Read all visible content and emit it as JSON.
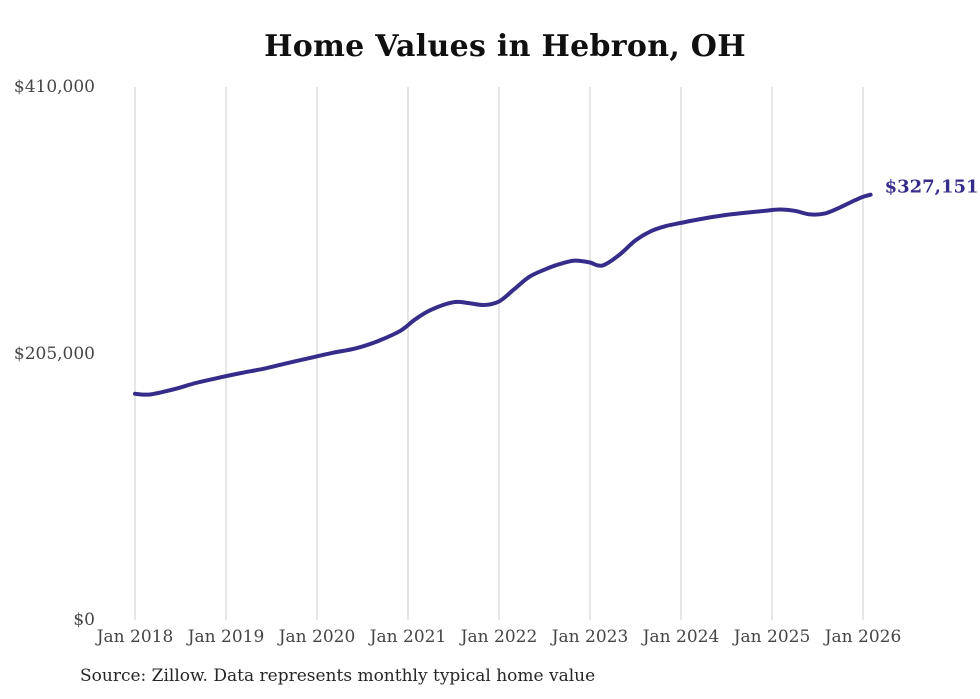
{
  "chart": {
    "title": "Home Values in Hebron, OH",
    "end_value_label": "$327,151",
    "source_note": "Source: Zillow. Data represents monthly typical home value"
  },
  "chart_data": {
    "type": "line",
    "title": "Home Values in Hebron, OH",
    "xlabel": "",
    "ylabel": "",
    "ylim": [
      0,
      410000
    ],
    "grid": "vertical-only",
    "legend": "none",
    "line_color": "#362d8b",
    "gridline_color": "#cccccc",
    "axis_text_color": "#454545",
    "y_ticks": [
      {
        "value": 0,
        "label": "$0"
      },
      {
        "value": 205000,
        "label": "$205,000"
      },
      {
        "value": 410000,
        "label": "$410,000"
      }
    ],
    "x_ticks": [
      "Jan 2018",
      "Jan 2019",
      "Jan 2020",
      "Jan 2021",
      "Jan 2022",
      "Jan 2023",
      "Jan 2024",
      "Jan 2025",
      "Jan 2026"
    ],
    "series": [
      {
        "name": "Monthly typical home value",
        "end_label": "$327,151",
        "latest_value": 327151,
        "points": [
          [
            "2018-01",
            174000
          ],
          [
            "2018-03",
            173500
          ],
          [
            "2018-06",
            177300
          ],
          [
            "2018-09",
            182300
          ],
          [
            "2018-12",
            186300
          ],
          [
            "2019-03",
            190000
          ],
          [
            "2019-06",
            193300
          ],
          [
            "2019-09",
            197500
          ],
          [
            "2019-12",
            201500
          ],
          [
            "2020-03",
            205500
          ],
          [
            "2020-06",
            208800
          ],
          [
            "2020-09",
            214500
          ],
          [
            "2020-12",
            222500
          ],
          [
            "2021-02",
            231500
          ],
          [
            "2021-04",
            238500
          ],
          [
            "2021-07",
            244500
          ],
          [
            "2021-09",
            243800
          ],
          [
            "2021-11",
            242300
          ],
          [
            "2022-01",
            245000
          ],
          [
            "2022-03",
            254500
          ],
          [
            "2022-05",
            264000
          ],
          [
            "2022-07",
            269500
          ],
          [
            "2022-09",
            273800
          ],
          [
            "2022-11",
            276500
          ],
          [
            "2023-01",
            275000
          ],
          [
            "2023-02",
            272800
          ],
          [
            "2023-03",
            273500
          ],
          [
            "2023-05",
            281500
          ],
          [
            "2023-07",
            292000
          ],
          [
            "2023-09",
            299000
          ],
          [
            "2023-11",
            303000
          ],
          [
            "2024-01",
            305500
          ],
          [
            "2024-03",
            307800
          ],
          [
            "2024-06",
            310800
          ],
          [
            "2024-09",
            313000
          ],
          [
            "2024-12",
            314700
          ],
          [
            "2025-02",
            315800
          ],
          [
            "2025-04",
            314800
          ],
          [
            "2025-06",
            312000
          ],
          [
            "2025-08",
            312800
          ],
          [
            "2025-10",
            317500
          ],
          [
            "2025-12",
            323000
          ],
          [
            "2026-01",
            325500
          ],
          [
            "2026-02",
            327151
          ]
        ]
      }
    ]
  }
}
